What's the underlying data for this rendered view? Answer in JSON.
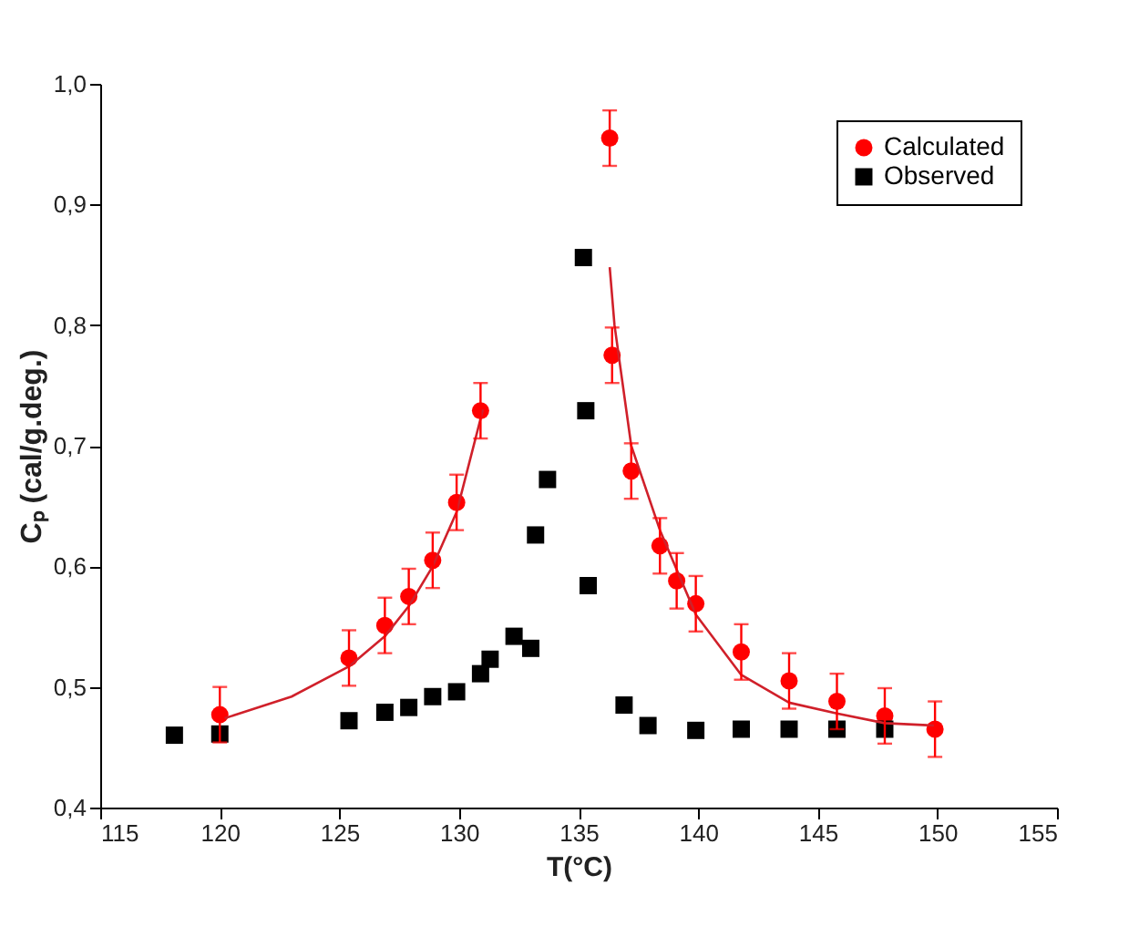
{
  "chart_data": {
    "type": "scatter",
    "xlabel": "T(°C)",
    "ylabel": "Cₚ (cal/g.deg.)",
    "xlim": [
      115,
      155
    ],
    "xticks": [
      115,
      120,
      125,
      130,
      135,
      140,
      145,
      150,
      155
    ],
    "ylim": [
      0.4,
      1.0
    ],
    "yticks": [
      {
        "value": 0.4,
        "label": "0,4"
      },
      {
        "value": 0.5,
        "label": "0,5"
      },
      {
        "value": 0.6,
        "label": "0,6"
      },
      {
        "value": 0.7,
        "label": "0,7"
      },
      {
        "value": 0.8,
        "label": "0,8"
      },
      {
        "value": 0.9,
        "label": "0,9"
      },
      {
        "value": 1.0,
        "label": "1,0"
      }
    ],
    "legend": "top right",
    "grid": false,
    "series": [
      {
        "name": "Calculated",
        "color": "#ff0000",
        "marker": "circle",
        "x": [
          120,
          125.4,
          126.9,
          127.9,
          128.9,
          129.9,
          130.9,
          136.3,
          136.4,
          137.2,
          138.4,
          139.1,
          139.9,
          141.8,
          143.8,
          145.8,
          147.8,
          149.9
        ],
        "values": [
          0.477,
          0.524,
          0.551,
          0.575,
          0.605,
          0.653,
          0.729,
          0.955,
          0.775,
          0.679,
          0.617,
          0.588,
          0.569,
          0.529,
          0.505,
          0.488,
          0.476,
          0.465
        ],
        "errors": [
          0.023,
          0.023,
          0.023,
          0.023,
          0.023,
          0.023,
          0.023,
          0.023,
          0.023,
          0.023,
          0.023,
          0.023,
          0.023,
          0.023,
          0.023,
          0.023,
          0.023,
          0.023
        ]
      },
      {
        "name": "Observed",
        "color": "#000000",
        "marker": "square",
        "x": [
          118.1,
          120,
          125.4,
          126.9,
          127.9,
          128.9,
          129.9,
          130.9,
          131.3,
          132.3,
          133.0,
          133.2,
          133.7,
          135.2,
          135.3,
          135.4,
          136.9,
          137.9,
          139.9,
          141.8,
          143.8,
          145.8,
          147.8
        ],
        "values": [
          0.46,
          0.461,
          0.472,
          0.479,
          0.483,
          0.492,
          0.496,
          0.511,
          0.523,
          0.542,
          0.532,
          0.626,
          0.672,
          0.856,
          0.729,
          0.584,
          0.485,
          0.468,
          0.464,
          0.465,
          0.465,
          0.465,
          0.465
        ]
      },
      {
        "type": "line",
        "color": "#d0202a",
        "x": [
          120.2,
          123,
          125.4,
          126.9,
          127.9,
          128.9,
          129.9,
          131
        ],
        "values": [
          0.474,
          0.492,
          0.517,
          0.542,
          0.567,
          0.6,
          0.645,
          0.73
        ]
      },
      {
        "type": "line",
        "color": "#d0202a",
        "x": [
          136.3,
          136.5,
          137.2,
          138.4,
          139.9,
          141.8,
          143.8,
          145.8,
          147.8,
          149.9
        ],
        "values": [
          0.848,
          0.8,
          0.7,
          0.63,
          0.56,
          0.51,
          0.487,
          0.478,
          0.47,
          0.468
        ]
      }
    ]
  }
}
